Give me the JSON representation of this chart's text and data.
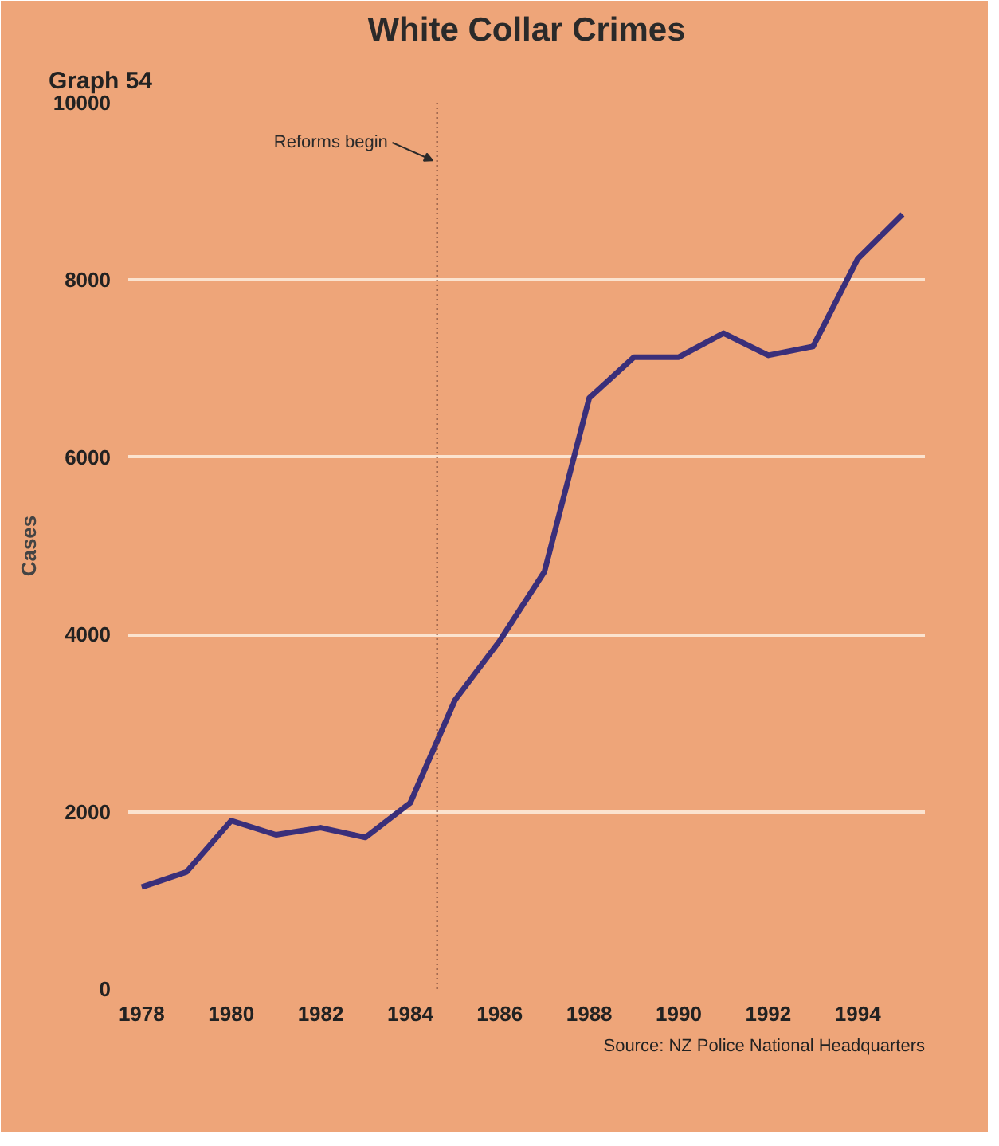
{
  "chart_data": {
    "type": "line",
    "title": "White Collar Crimes",
    "subtitle": "Graph 54",
    "ylabel": "Cases",
    "x": [
      1978,
      1979,
      1980,
      1981,
      1982,
      1983,
      1984,
      1985,
      1986,
      1987,
      1988,
      1989,
      1990,
      1991,
      1992,
      1993,
      1994,
      1995
    ],
    "series": [
      {
        "color": "#3a2f7a",
        "values": [
          1150,
          1320,
          1900,
          1740,
          1820,
          1710,
          2100,
          3260,
          3930,
          4710,
          6670,
          7130,
          7130,
          7400,
          7150,
          7250,
          8240,
          8740
        ]
      }
    ],
    "xlim": [
      1977.7,
      1995.5
    ],
    "ylim": [
      0,
      10000
    ],
    "xticks": [
      1978,
      1980,
      1982,
      1984,
      1986,
      1988,
      1990,
      1992,
      1994
    ],
    "yticks": [
      0,
      2000,
      4000,
      6000,
      8000,
      10000
    ],
    "grid": "y",
    "marker": "none",
    "line_style": "solid",
    "ref_lines": [
      {
        "axis": "x",
        "value": 1984.6,
        "label": "Reforms begin",
        "color": "#7a4a3a",
        "line_style": "dotted"
      }
    ],
    "annotations": [
      "Source: NZ Police National Headquarters"
    ]
  }
}
